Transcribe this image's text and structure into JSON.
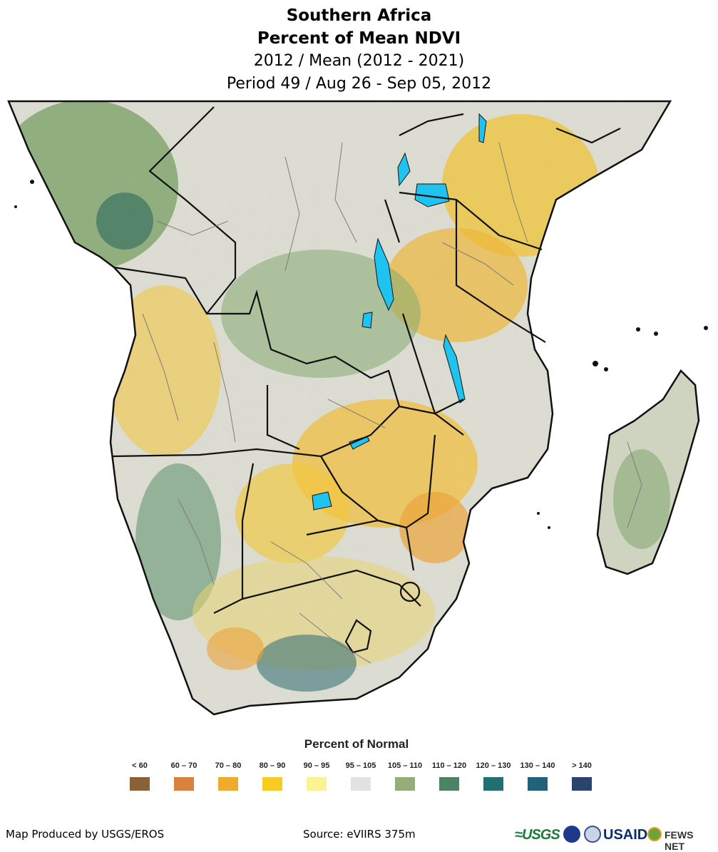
{
  "title": {
    "line1": "Southern Africa",
    "line2": "Percent of Mean NDVI",
    "line3": "2012 / Mean (2012 - 2021)",
    "line4": "Period 49 / Aug 26 - Sep 05, 2012"
  },
  "legend": {
    "title": "Percent of Normal",
    "items": [
      {
        "label": "< 60",
        "color": "#8b6035"
      },
      {
        "label": "60 – 70",
        "color": "#d9823e"
      },
      {
        "label": "70 – 80",
        "color": "#f0aa2e"
      },
      {
        "label": "80 – 90",
        "color": "#f7cc22"
      },
      {
        "label": "90 – 95",
        "color": "#fbf296"
      },
      {
        "label": "95 – 105",
        "color": "#e2e2e2"
      },
      {
        "label": "105 – 110",
        "color": "#93ae79"
      },
      {
        "label": "110 – 120",
        "color": "#4e8266"
      },
      {
        "label": "120 – 130",
        "color": "#216f70"
      },
      {
        "label": "130 – 140",
        "color": "#21617a"
      },
      {
        "label": "> 140",
        "color": "#2a456b"
      }
    ]
  },
  "footer": {
    "producer": "Map Produced by USGS/EROS",
    "source": "Source: eVIIRS 375m"
  },
  "logos": {
    "usgs": "≈USGS",
    "usaid": "USAID",
    "fews": "FEWS NET"
  },
  "colors": {
    "land": "#dcdcd2",
    "water": "#1ec3f0",
    "border": "#111111",
    "admin": "#777777"
  }
}
